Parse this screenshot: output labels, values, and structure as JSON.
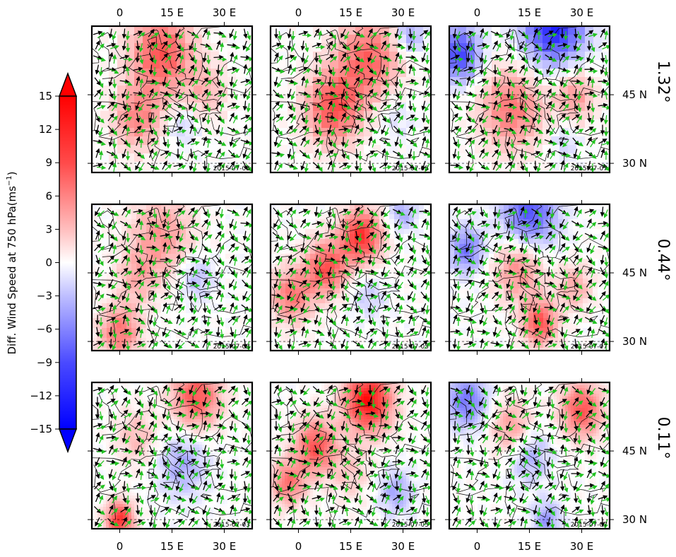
{
  "chart_data": {
    "type": "heatmap",
    "description_units": "Diff. Wind Speed at 750 hPa(ms",
    "colorbar": {
      "label": "Diff. Wind Speed at 750 hPa(ms",
      "label_exponent": "−1",
      "label_close": ")",
      "ticks": [
        "15",
        "12",
        "9",
        "6",
        "3",
        "0",
        "−3",
        "−6",
        "−9",
        "−12",
        "−15"
      ],
      "tick_values": [
        15,
        12,
        9,
        6,
        3,
        0,
        -3,
        -6,
        -9,
        -12,
        -15
      ],
      "range": [
        -15,
        15
      ],
      "extend": "both",
      "colormap": "bwr",
      "low_color": "#0000ff",
      "mid_color": "#ffffff",
      "high_color": "#ff0000"
    },
    "x_axis": {
      "ticks": [
        "0",
        "15 E",
        "30 E"
      ],
      "tick_values": [
        0,
        15,
        30
      ],
      "range": [
        -8,
        38
      ]
    },
    "y_axis": {
      "ticks": [
        "45 N",
        "30 N"
      ],
      "tick_values": [
        45,
        30
      ],
      "range": [
        28,
        60
      ]
    },
    "rows": [
      {
        "resolution": "1.32°"
      },
      {
        "resolution": "0.44°"
      },
      {
        "resolution": "0.11°"
      }
    ],
    "columns": [
      {
        "date": "2015-07-03"
      },
      {
        "date": "2015-07-05"
      },
      {
        "date": "2015-07-07"
      }
    ],
    "panels": [
      {
        "row": 0,
        "col": 0,
        "date": "2015-07-03",
        "resolution": "1.32°",
        "blobs": [
          {
            "lon": 12,
            "lat": 54,
            "value": 10,
            "spread": 9
          },
          {
            "lon": 5,
            "lat": 40,
            "value": 7,
            "spread": 7
          },
          {
            "lon": 25,
            "lat": 46,
            "value": 4,
            "spread": 6
          },
          {
            "lon": 18,
            "lat": 38,
            "value": -3,
            "spread": 4
          }
        ]
      },
      {
        "row": 0,
        "col": 1,
        "date": "2015-07-05",
        "resolution": "1.32°",
        "blobs": [
          {
            "lon": 20,
            "lat": 53,
            "value": 9,
            "spread": 9
          },
          {
            "lon": 10,
            "lat": 42,
            "value": 10,
            "spread": 8
          },
          {
            "lon": 28,
            "lat": 40,
            "value": -2,
            "spread": 5
          },
          {
            "lon": 32,
            "lat": 58,
            "value": -6,
            "spread": 4
          }
        ]
      },
      {
        "row": 0,
        "col": 2,
        "date": "2015-07-07",
        "resolution": "1.32°",
        "blobs": [
          {
            "lon": -5,
            "lat": 54,
            "value": -11,
            "spread": 6
          },
          {
            "lon": 22,
            "lat": 60,
            "value": -13,
            "spread": 9
          },
          {
            "lon": 10,
            "lat": 42,
            "value": 8,
            "spread": 9
          },
          {
            "lon": 28,
            "lat": 45,
            "value": 6,
            "spread": 6
          },
          {
            "lon": 25,
            "lat": 35,
            "value": -3,
            "spread": 4
          }
        ]
      },
      {
        "row": 1,
        "col": 0,
        "date": "2015-07-03",
        "resolution": "0.44°",
        "blobs": [
          {
            "lon": 12,
            "lat": 53,
            "value": 6,
            "spread": 9
          },
          {
            "lon": 0,
            "lat": 32,
            "value": 8,
            "spread": 6
          },
          {
            "lon": 22,
            "lat": 44,
            "value": -4,
            "spread": 5
          },
          {
            "lon": 5,
            "lat": 44,
            "value": 4,
            "spread": 6
          }
        ]
      },
      {
        "row": 1,
        "col": 1,
        "date": "2015-07-05",
        "resolution": "0.44°",
        "blobs": [
          {
            "lon": 18,
            "lat": 53,
            "value": 12,
            "spread": 6
          },
          {
            "lon": 8,
            "lat": 46,
            "value": 10,
            "spread": 6
          },
          {
            "lon": -2,
            "lat": 40,
            "value": 8,
            "spread": 6
          },
          {
            "lon": 20,
            "lat": 40,
            "value": -3,
            "spread": 5
          },
          {
            "lon": 30,
            "lat": 58,
            "value": -5,
            "spread": 4
          }
        ]
      },
      {
        "row": 1,
        "col": 2,
        "date": "2015-07-07",
        "resolution": "0.44°",
        "blobs": [
          {
            "lon": 15,
            "lat": 58,
            "value": -10,
            "spread": 8
          },
          {
            "lon": -3,
            "lat": 50,
            "value": -8,
            "spread": 5
          },
          {
            "lon": 18,
            "lat": 34,
            "value": 10,
            "spread": 5
          },
          {
            "lon": 12,
            "lat": 46,
            "value": 7,
            "spread": 7
          },
          {
            "lon": 28,
            "lat": 42,
            "value": 5,
            "spread": 5
          }
        ]
      },
      {
        "row": 2,
        "col": 0,
        "date": "2015-07-03",
        "resolution": "0.11°",
        "blobs": [
          {
            "lon": 22,
            "lat": 57,
            "value": 10,
            "spread": 7
          },
          {
            "lon": 0,
            "lat": 30,
            "value": 12,
            "spread": 4
          },
          {
            "lon": 18,
            "lat": 42,
            "value": -5,
            "spread": 7
          },
          {
            "lon": 5,
            "lat": 48,
            "value": 4,
            "spread": 6
          }
        ]
      },
      {
        "row": 2,
        "col": 1,
        "date": "2015-07-05",
        "resolution": "0.11°",
        "blobs": [
          {
            "lon": 20,
            "lat": 56,
            "value": 14,
            "spread": 7
          },
          {
            "lon": 5,
            "lat": 46,
            "value": 10,
            "spread": 6
          },
          {
            "lon": -3,
            "lat": 38,
            "value": 8,
            "spread": 5
          },
          {
            "lon": 28,
            "lat": 36,
            "value": -5,
            "spread": 5
          },
          {
            "lon": 15,
            "lat": 40,
            "value": 3,
            "spread": 6
          }
        ]
      },
      {
        "row": 2,
        "col": 2,
        "date": "2015-07-07",
        "resolution": "0.11°",
        "blobs": [
          {
            "lon": 30,
            "lat": 54,
            "value": 10,
            "spread": 6
          },
          {
            "lon": -3,
            "lat": 56,
            "value": -8,
            "spread": 6
          },
          {
            "lon": 15,
            "lat": 44,
            "value": -5,
            "spread": 6
          },
          {
            "lon": 10,
            "lat": 50,
            "value": 6,
            "spread": 6
          },
          {
            "lon": 20,
            "lat": 30,
            "value": -6,
            "spread": 4
          }
        ]
      }
    ]
  },
  "colors": {
    "arrow_primary": "#000000",
    "arrow_secondary": "#22c322",
    "coastline": "#000000"
  }
}
